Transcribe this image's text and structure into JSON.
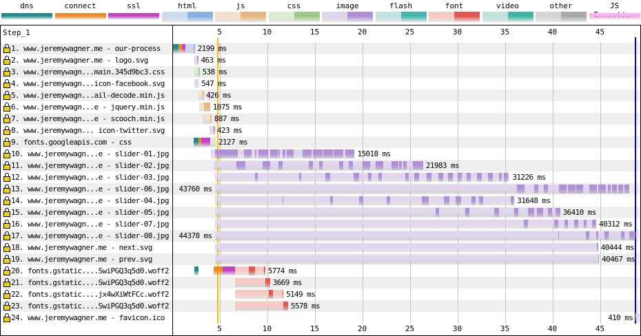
{
  "legend": [
    {
      "label": "dns",
      "type": "dns",
      "light": "#1f8a8a",
      "dark": "#1f8a8a"
    },
    {
      "label": "connect",
      "type": "connect",
      "light": "#f08a24",
      "dark": "#f08a24"
    },
    {
      "label": "ssl",
      "type": "ssl",
      "light": "#c440c9",
      "dark": "#c440c9"
    },
    {
      "label": "html",
      "type": "html",
      "light": "#cbdaf0",
      "dark": "#8ab0e6"
    },
    {
      "label": "js",
      "type": "js",
      "light": "#f3e0cb",
      "dark": "#ebb67c"
    },
    {
      "label": "css",
      "type": "css",
      "light": "#d9edd0",
      "dark": "#9ccb87"
    },
    {
      "label": "image",
      "type": "image",
      "light": "#e0d6ee",
      "dark": "#b08fd8"
    },
    {
      "label": "flash",
      "type": "flash",
      "light": "#bfe3e1",
      "dark": "#45b5b0"
    },
    {
      "label": "font",
      "type": "font",
      "light": "#f8c9c2",
      "dark": "#e5574a"
    },
    {
      "label": "video",
      "type": "video",
      "light": "#bfe3dc",
      "dark": "#3fb5a3"
    },
    {
      "label": "other",
      "type": "other",
      "light": "#d4d4d4",
      "dark": "#a9a9a9"
    },
    {
      "label": "JS Execution",
      "type": "jsexec",
      "light": "#ffadf7",
      "dark": "#ffadf7"
    }
  ],
  "step_label": "Step_1",
  "axis": {
    "min": 0,
    "max": 49.2,
    "ticks": [
      5,
      10,
      15,
      20,
      25,
      30,
      35,
      40,
      45
    ],
    "unit": "s"
  },
  "markers": {
    "start_render": 4.85,
    "start_render_color": "#ffc000",
    "doc_complete": 48.75,
    "doc_complete_color": "#0000e0"
  },
  "requests": [
    {
      "label": "1. www.jeremywagner.me - our-process",
      "duration": "2199 ms",
      "segs": [
        [
          "dns",
          0.1,
          0.7
        ],
        [
          "connect",
          0.7,
          1.05
        ],
        [
          "ssl",
          1.05,
          1.4
        ],
        [
          "html",
          1.4,
          2.4
        ]
      ],
      "dark": [
        [
          2.25,
          2.4
        ]
      ],
      "jsexec": [
        [
          4.9,
          5.0
        ]
      ]
    },
    {
      "label": "2. www.jeremywagner.me - logo.svg",
      "duration": "463 ms",
      "segs": [
        [
          "image",
          2.35,
          2.75
        ]
      ],
      "dark": [
        [
          2.65,
          2.75
        ]
      ]
    },
    {
      "label": "3. www.jeremywagn...main.345d9bc3.css",
      "duration": "538 ms",
      "segs": [
        [
          "css",
          2.35,
          2.9
        ]
      ],
      "dark": [
        [
          2.8,
          2.9
        ]
      ]
    },
    {
      "label": "4. www.jeremywagn...icon-facebook.svg",
      "duration": "547 ms",
      "segs": [
        [
          "image",
          2.35,
          2.8
        ]
      ],
      "dark": []
    },
    {
      "label": "5. www.jeremywagn...ail-decode.min.js",
      "duration": "426 ms",
      "segs": [
        [
          "js",
          2.8,
          3.3
        ]
      ],
      "dark": [
        [
          3.25,
          3.3
        ]
      ],
      "jsexec": [
        [
          3.85,
          3.9
        ]
      ]
    },
    {
      "label": "6. www.jeremywagn...e - jquery.min.js",
      "duration": "1075 ms",
      "segs": [
        [
          "js",
          2.85,
          4.0
        ]
      ],
      "dark": [
        [
          3.35,
          4.0
        ]
      ]
    },
    {
      "label": "7. www.jeremywagn...e - scooch.min.js",
      "duration": "887 ms",
      "segs": [
        [
          "js",
          3.2,
          4.15
        ]
      ],
      "dark": [
        [
          4.05,
          4.15
        ]
      ],
      "jsexec": [
        [
          4.6,
          4.65
        ]
      ]
    },
    {
      "label": "8. www.jeremywagn... icon-twitter.svg",
      "duration": "423 ms",
      "segs": [
        [
          "image",
          3.95,
          4.45
        ]
      ],
      "dark": [
        [
          4.4,
          4.45
        ]
      ]
    },
    {
      "label": "9. fonts.googleapis.com - css",
      "duration": "2127 ms",
      "segs": [
        [
          "dns",
          2.3,
          2.8
        ],
        [
          "connect",
          2.8,
          3.1
        ],
        [
          "ssl",
          3.1,
          4.0
        ],
        [
          "css",
          4.0,
          4.6
        ]
      ],
      "dark": []
    },
    {
      "label": "10. www.jeremywagn...e - slider-01.jpg",
      "duration": "15018 ms",
      "segs": [
        [
          "image",
          4.1,
          19.2
        ]
      ],
      "dark": [
        [
          4.5,
          6.9
        ],
        [
          7.6,
          8.4
        ],
        [
          8.7,
          8.9
        ],
        [
          9.1,
          10.1
        ],
        [
          10.3,
          11.1
        ],
        [
          11.2,
          11.3
        ],
        [
          11.6,
          11.9
        ],
        [
          12.1,
          12.8
        ],
        [
          13.7,
          14.7
        ],
        [
          14.8,
          15.8
        ],
        [
          15.9,
          16.9
        ],
        [
          17.0,
          18.0
        ],
        [
          18.2,
          19.2
        ]
      ]
    },
    {
      "label": "11. www.jeremywagn...e - slider-02.jpg",
      "duration": "21983 ms",
      "segs": [
        [
          "image",
          4.4,
          26.4
        ]
      ],
      "dark": [
        [
          6.8,
          7.7
        ],
        [
          9.5,
          10.3
        ],
        [
          11.2,
          11.6
        ],
        [
          14.4,
          14.8
        ],
        [
          15.5,
          15.8
        ],
        [
          17.6,
          18.0
        ],
        [
          18.6,
          19.0
        ],
        [
          20.0,
          20.8
        ],
        [
          21.4,
          22.2
        ],
        [
          23.1,
          23.8
        ],
        [
          23.9,
          24.2
        ],
        [
          24.3,
          24.7
        ],
        [
          25.3,
          26.4
        ]
      ]
    },
    {
      "label": "12. www.jeremywagn...e - slider-03.jpg",
      "duration": "31226 ms",
      "segs": [
        [
          "image",
          4.5,
          35.5
        ]
      ],
      "dark": [
        [
          8.7,
          9.0
        ],
        [
          13.4,
          13.6
        ],
        [
          16.1,
          16.6
        ],
        [
          19.1,
          19.7
        ],
        [
          20.6,
          21.0
        ],
        [
          21.7,
          22.1
        ],
        [
          24.5,
          24.9
        ],
        [
          25.5,
          26.0
        ],
        [
          26.8,
          27.3
        ],
        [
          28.0,
          28.5
        ],
        [
          29.0,
          29.5
        ],
        [
          30.0,
          30.5
        ],
        [
          31.0,
          31.4
        ],
        [
          32.1,
          32.6
        ],
        [
          33.2,
          33.7
        ],
        [
          34.4,
          34.7
        ],
        [
          34.9,
          35.3
        ]
      ]
    },
    {
      "label": "13. www.jeremywagn...e - slider-06.jpg",
      "duration": "43760 ms",
      "label_left": true,
      "segs": [
        [
          "image",
          4.5,
          48.1
        ]
      ],
      "dark": [
        [
          36.3,
          37.1
        ],
        [
          38.1,
          38.5
        ],
        [
          39.1,
          39.5
        ],
        [
          40.7,
          41.5
        ],
        [
          41.6,
          42.4
        ],
        [
          42.5,
          43.2
        ],
        [
          43.9,
          44.7
        ],
        [
          44.8,
          45.6
        ],
        [
          45.8,
          46.1
        ],
        [
          46.3,
          46.8
        ],
        [
          46.9,
          47.4
        ],
        [
          47.6,
          48.1
        ]
      ]
    },
    {
      "label": "14. www.jeremywagn...e - slider-04.jpg",
      "duration": "31648 ms",
      "segs": [
        [
          "image",
          4.5,
          36.0
        ]
      ],
      "dark": [
        [
          11.6,
          11.7
        ],
        [
          16.6,
          16.9
        ],
        [
          19.7,
          20.1
        ],
        [
          22.6,
          22.9
        ],
        [
          26.3,
          27.0
        ],
        [
          28.6,
          29.2
        ],
        [
          29.8,
          30.4
        ],
        [
          31.5,
          31.9
        ],
        [
          32.3,
          32.7
        ],
        [
          35.6,
          36.0
        ]
      ]
    },
    {
      "label": "15. www.jeremywagn...e - slider-05.jpg",
      "duration": "36410 ms",
      "segs": [
        [
          "image",
          4.5,
          40.8
        ]
      ],
      "dark": [
        [
          27.7,
          28.1
        ],
        [
          30.8,
          31.3
        ],
        [
          33.9,
          34.4
        ],
        [
          36.0,
          36.4
        ],
        [
          37.4,
          38.1
        ],
        [
          38.4,
          39.0
        ],
        [
          39.5,
          40.0
        ],
        [
          40.3,
          40.8
        ]
      ]
    },
    {
      "label": "16. www.jeremywagn...e - slider-07.jpg",
      "duration": "40312 ms",
      "segs": [
        [
          "image",
          4.5,
          44.6
        ]
      ],
      "dark": [
        [
          37.0,
          37.4
        ],
        [
          40.2,
          40.6
        ],
        [
          41.3,
          41.6
        ],
        [
          42.3,
          42.7
        ],
        [
          43.3,
          43.6
        ],
        [
          44.2,
          44.6
        ]
      ]
    },
    {
      "label": "17. www.jeremywagn...e - slider-08.jpg",
      "duration": "44378 ms",
      "label_left": true,
      "segs": [
        [
          "image",
          4.5,
          48.75
        ]
      ],
      "dark": [
        [
          40.6,
          40.7
        ],
        [
          43.5,
          43.9
        ],
        [
          44.6,
          44.8
        ],
        [
          45.5,
          45.9
        ],
        [
          47.2,
          47.6
        ],
        [
          48.1,
          48.75
        ]
      ]
    },
    {
      "label": "18. www.jeremywagner.me - next.svg",
      "duration": "40444 ms",
      "segs": [
        [
          "image",
          4.5,
          44.8
        ]
      ],
      "dark": [
        [
          44.7,
          44.8
        ]
      ]
    },
    {
      "label": "19. www.jeremywagner.me - prev.svg",
      "duration": "40467 ms",
      "segs": [
        [
          "image",
          4.5,
          44.9
        ]
      ],
      "dark": [
        [
          44.8,
          44.9
        ]
      ]
    },
    {
      "label": "20. fonts.gstatic....SwiPGQ3q5d0.woff2",
      "duration": "5774 ms",
      "segs": [
        [
          "dns",
          2.35,
          2.8
        ],
        [
          "connect",
          4.4,
          5.35
        ],
        [
          "ssl",
          5.35,
          6.6
        ],
        [
          "font",
          6.6,
          9.8
        ]
      ],
      "dark": [
        [
          8.1,
          8.7
        ],
        [
          9.7,
          9.8
        ]
      ]
    },
    {
      "label": "21. fonts.gstatic....SwiPGQ3q5d0.woff2",
      "duration": "3669 ms",
      "segs": [
        [
          "font",
          6.6,
          10.3
        ]
      ],
      "dark": [
        [
          9.8,
          10.3
        ]
      ]
    },
    {
      "label": "22. fonts.gstatic....jx4wXiWtFCc.woff2",
      "duration": "5149 ms",
      "segs": [
        [
          "font",
          6.6,
          11.7
        ]
      ],
      "dark": [
        [
          10.2,
          10.6
        ],
        [
          11.6,
          11.7
        ]
      ]
    },
    {
      "label": "23. fonts.gstatic....SwiPGQ3q5d0.woff2",
      "duration": "5578 ms",
      "segs": [
        [
          "font",
          6.6,
          12.2
        ]
      ],
      "dark": [
        [
          11.7,
          12.2
        ]
      ]
    },
    {
      "label": "24. www.jeremywagner.me - favicon.ico",
      "duration": "410 ms",
      "label_left": true,
      "segs": [
        [
          "image",
          48.75,
          49.2
        ]
      ],
      "dark": []
    }
  ]
}
